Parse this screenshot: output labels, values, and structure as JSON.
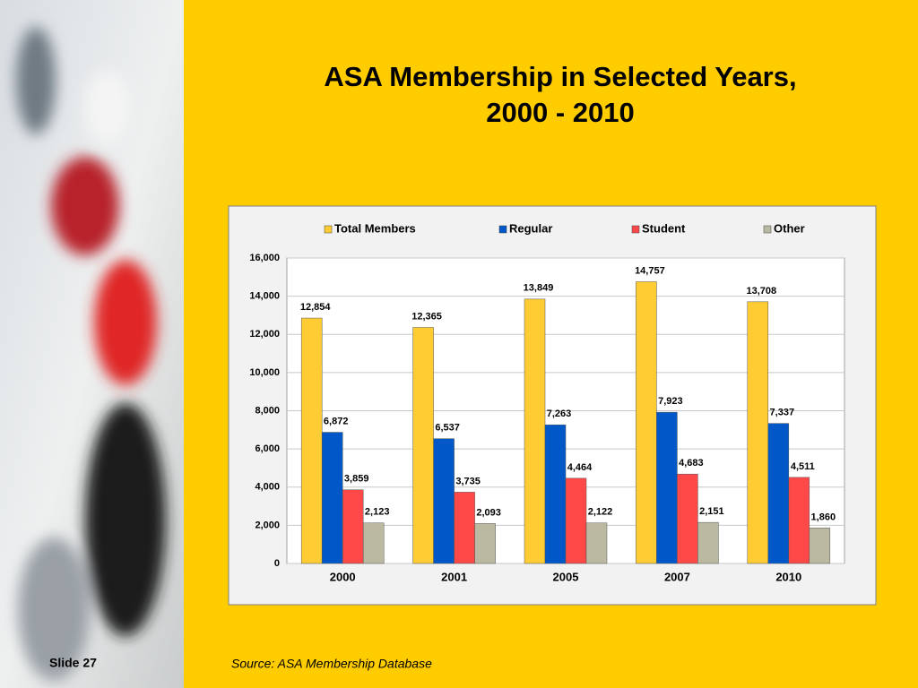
{
  "chart_data": {
    "type": "bar",
    "title": [
      "ASA Membership in Selected Years,",
      "2000 - 2010"
    ],
    "categories": [
      "2000",
      "2001",
      "2005",
      "2007",
      "2010"
    ],
    "series": [
      {
        "name": "Total Members",
        "color": "#ffcc33",
        "values": [
          12854,
          12365,
          13849,
          14757,
          13708
        ],
        "value_labels": [
          "12,854",
          "12,365",
          "13,849",
          "14,757",
          "13,708"
        ]
      },
      {
        "name": "Regular",
        "color": "#0058c8",
        "values": [
          6872,
          6537,
          7263,
          7923,
          7337
        ],
        "value_labels": [
          "6,872",
          "6,537",
          "7,263",
          "7,923",
          "7,337"
        ]
      },
      {
        "name": "Student",
        "color": "#ff4848",
        "values": [
          3859,
          3735,
          4464,
          4683,
          4511
        ],
        "value_labels": [
          "3,859",
          "3,735",
          "4,464",
          "4,683",
          "4,511"
        ]
      },
      {
        "name": "Other",
        "color": "#bcb9a2",
        "values": [
          2123,
          2093,
          2122,
          2151,
          1860
        ],
        "value_labels": [
          "2,123",
          "2,093",
          "2,122",
          "2,151",
          "1,860"
        ]
      }
    ],
    "ylim": [
      0,
      16000
    ],
    "yticks": [
      0,
      {
        "value": 2000,
        "label": "2,000"
      },
      {
        "value": 4000,
        "label": "4,000"
      },
      {
        "value": 6000,
        "label": "6,000"
      },
      {
        "value": 8000,
        "label": "8,000"
      },
      {
        "value": 10000,
        "label": "10,000"
      },
      {
        "value": 12000,
        "label": "12,000"
      },
      {
        "value": 14000,
        "label": "14,000"
      },
      {
        "value": 16000,
        "label": "16,000"
      }
    ],
    "grid": true,
    "legend": "top"
  },
  "slide_label": "Slide 27",
  "source": "Source: ASA Membership Database"
}
